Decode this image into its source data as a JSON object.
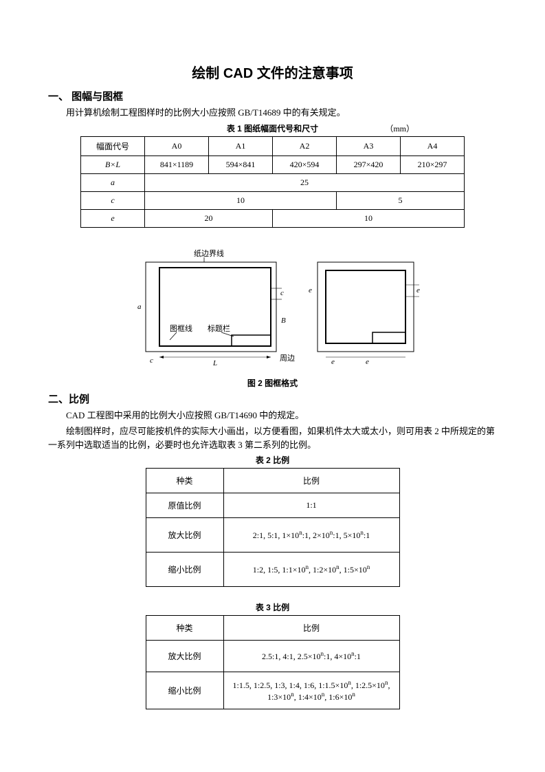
{
  "title": "绘制 CAD 文件的注意事项",
  "section1": {
    "heading": "一、  图幅与图框",
    "para": "用计算机绘制工程图样时的比例大小应按照 GB/T14689 中的有关规定。",
    "table_caption": "表 1  图纸幅面代号和尺寸",
    "table_unit": "（mm）",
    "t1": {
      "r1": {
        "c0": "幅面代号",
        "c1": "A0",
        "c2": "A1",
        "c3": "A2",
        "c4": "A3",
        "c5": "A4"
      },
      "r2": {
        "c0": "B×L",
        "c1": "841×1189",
        "c2": "594×841",
        "c3": "420×594",
        "c4": "297×420",
        "c5": "210×297"
      },
      "r3": {
        "c0": "a",
        "c1": "25"
      },
      "r4": {
        "c0": "c",
        "c1": "10",
        "c2": "5"
      },
      "r5": {
        "c0": "e",
        "c1": "20",
        "c2": "10"
      }
    },
    "fig_caption": "图 2  图框格式",
    "diagram": {
      "label_border": "纸边界线",
      "label_frame": "图框线",
      "label_title_block": "标题栏",
      "label_margin": "周边",
      "dim_a": "a",
      "dim_c": "c",
      "dim_e": "e",
      "dim_L": "L",
      "dim_B": "B"
    }
  },
  "section2": {
    "heading": "二、比例",
    "para1": "CAD 工程图中采用的比例大小应按照 GB/T14690 中的规定。",
    "para2": "绘制图样时，应尽可能按机件的实际大小画出，以方便看图，如果机件太大或太小，则可用表 2 中所规定的第一系列中选取适当的比例，必要时也允许选取表 3 第二系列的比例。",
    "t2_caption": "表 2 比例",
    "t2": {
      "h1": "种类",
      "h2": "比例",
      "r1c1": "原值比例",
      "r1c2": "1:1",
      "r2c1": "放大比例",
      "r2c2_html": "2:1, 5:1, 1×10<sup>n</sup>:1, 2×10<sup>n</sup>:1, 5×10<sup>n</sup>:1",
      "r3c1": "缩小比例",
      "r3c2_html": "1:2, 1:5, 1:1×10<sup>n</sup>, 1:2×10<sup>n</sup>, 1:5×10<sup>n</sup>"
    },
    "t3_caption": "表 3 比例",
    "t3": {
      "h1": "种类",
      "h2": "比例",
      "r1c1": "放大比例",
      "r1c2_html": "2.5:1, 4:1, 2.5×10<sup>n</sup>:1, 4×10<sup>n</sup>:1",
      "r2c1": "缩小比例",
      "r2c2_html": "1:1.5, 1:2.5, 1:3, 1:4, 1:6, 1:1.5×10<sup>n</sup>, 1:2.5×10<sup>n</sup>, 1:3×10<sup>n</sup>, 1:4×10<sup>n</sup>, 1:6×10<sup>n</sup>"
    }
  }
}
